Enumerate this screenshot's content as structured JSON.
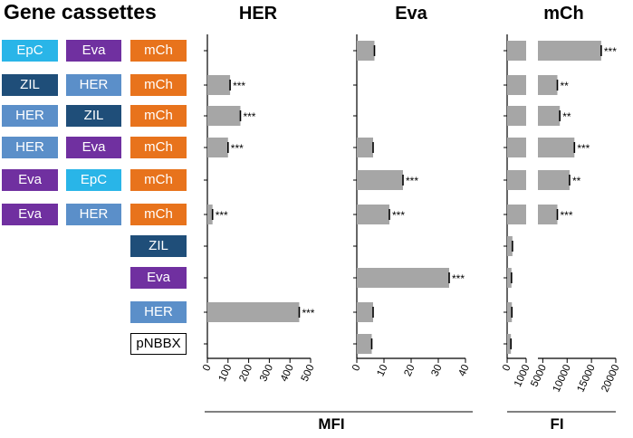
{
  "heading": "Gene cassettes",
  "cassette_colors": {
    "EpC": "#29b5e8",
    "ZIL": "#1f4e79",
    "HER": "#5b8fc9",
    "Eva": "#7030a0",
    "mCh": "#e8731c",
    "pNBBX": "#ffffff"
  },
  "bar_color": "#a6a6a6",
  "rows": [
    {
      "cassettes": [
        "EpC",
        "Eva",
        "mCh"
      ]
    },
    {
      "cassettes": [
        "ZIL",
        "HER",
        "mCh"
      ]
    },
    {
      "cassettes": [
        "HER",
        "ZIL",
        "mCh"
      ]
    },
    {
      "cassettes": [
        "HER",
        "Eva",
        "mCh"
      ]
    },
    {
      "cassettes": [
        "Eva",
        "EpC",
        "mCh"
      ]
    },
    {
      "cassettes": [
        "Eva",
        "HER",
        "mCh"
      ]
    },
    {
      "cassettes": [
        "",
        "",
        "ZIL"
      ]
    },
    {
      "cassettes": [
        "",
        "",
        "Eva"
      ]
    },
    {
      "cassettes": [
        "",
        "",
        "HER"
      ]
    },
    {
      "cassettes": [
        "",
        "",
        "pNBBX"
      ]
    }
  ],
  "chart_data": [
    {
      "type": "bar",
      "orientation": "horizontal",
      "title": "HER",
      "xlabel": "MFI",
      "xlim": [
        0,
        500
      ],
      "ticks": [
        0,
        100,
        200,
        300,
        400,
        500
      ],
      "values": [
        0,
        110,
        160,
        100,
        0,
        25,
        0,
        0,
        445,
        0
      ],
      "significance": [
        "",
        "***",
        "***",
        "***",
        "",
        "***",
        "",
        "",
        "***",
        ""
      ]
    },
    {
      "type": "bar",
      "orientation": "horizontal",
      "title": "Eva",
      "xlabel": "MFI",
      "xlim": [
        0,
        40
      ],
      "ticks": [
        0,
        10,
        20,
        30,
        40
      ],
      "values": [
        6.5,
        0,
        0,
        6,
        17,
        12,
        0,
        34,
        6,
        5.5
      ],
      "significance": [
        "",
        "",
        "",
        "",
        "***",
        "***",
        "",
        "***",
        "",
        ""
      ]
    },
    {
      "type": "bar",
      "orientation": "horizontal",
      "title": "mCh",
      "xlabel": "FI",
      "axis_break": true,
      "xlim_low": [
        0,
        1000
      ],
      "ticks_low": [
        0,
        1000
      ],
      "xlim_high": [
        4000,
        20000
      ],
      "ticks_high": [
        5000,
        10000,
        15000,
        20000
      ],
      "values": [
        17000,
        8000,
        8500,
        11500,
        10500,
        8000,
        280,
        230,
        250,
        200
      ],
      "significance": [
        "***",
        "**",
        "**",
        "***",
        "**",
        "***",
        "",
        "",
        "",
        ""
      ]
    }
  ],
  "unit_labels": {
    "mfi": "MFI",
    "fi": "FI"
  }
}
